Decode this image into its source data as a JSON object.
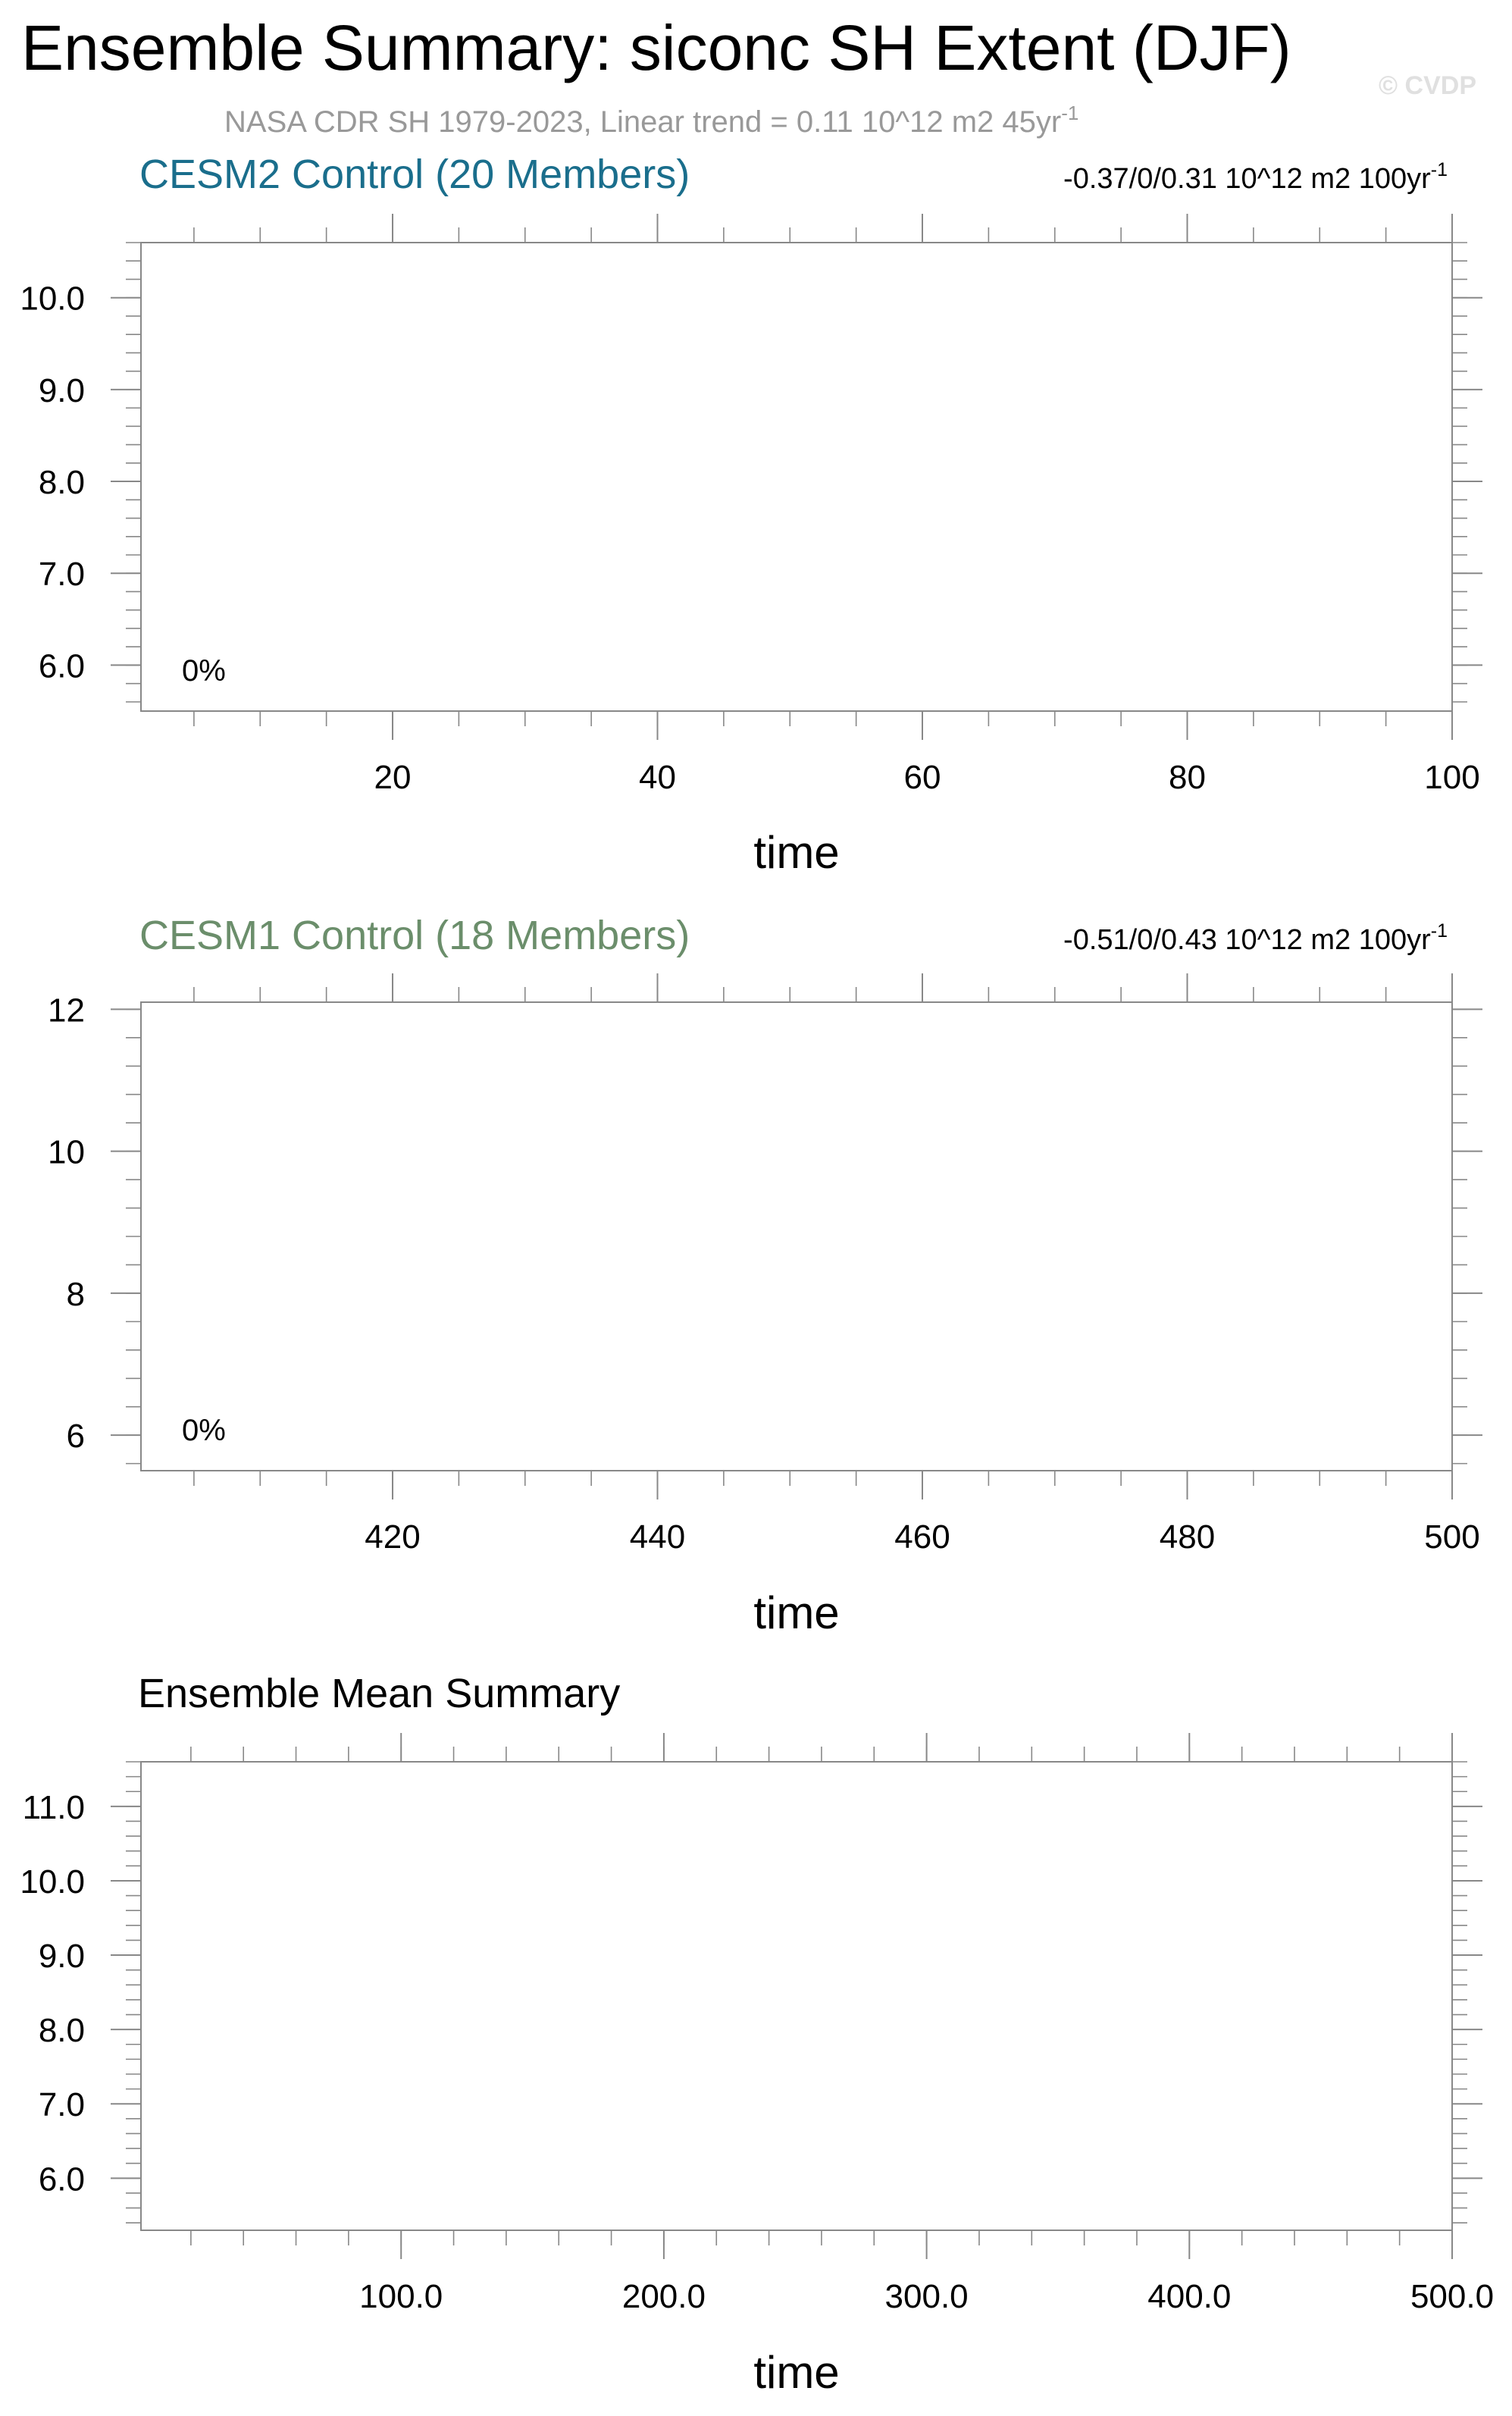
{
  "main_title": "Ensemble Summary: siconc SH Extent (DJF)",
  "watermark": "© CVDP",
  "obs_line": {
    "text": "NASA CDR SH 1979-2023, Linear trend = 0.11 10^12 m2 45yr",
    "superscript": "-1",
    "color": "#999999"
  },
  "chart_data": [
    {
      "type": "line",
      "title": "CESM2 Control (20 Members)",
      "title_color": "#1a6e8c",
      "trend_label": "-0.37/0/0.31 10^12 m2 100yr",
      "trend_superscript": "-1",
      "percent_label": "0%",
      "xlabel": "time",
      "ylabel": "",
      "xlim": [
        1,
        100
      ],
      "ylim": [
        5.5,
        10.6
      ],
      "x_ticks": [
        20,
        40,
        60,
        80,
        100
      ],
      "x_tick_labels": [
        "20",
        "40",
        "60",
        "80",
        "100"
      ],
      "x_minor_step": 5,
      "y_ticks": [
        6,
        7,
        8,
        9,
        10
      ],
      "y_tick_labels": [
        "6.0",
        "7.0",
        "8.0",
        "9.0",
        "10.0"
      ],
      "y_minor_step": 0.2,
      "series": []
    },
    {
      "type": "line",
      "title": "CESM1 Control (18 Members)",
      "title_color": "#6b8e6b",
      "trend_label": "-0.51/0/0.43 10^12 m2 100yr",
      "trend_superscript": "-1",
      "percent_label": "0%",
      "xlabel": "time",
      "ylabel": "",
      "xlim": [
        401,
        500
      ],
      "ylim": [
        5.5,
        12.1
      ],
      "x_ticks": [
        420,
        440,
        460,
        480,
        500
      ],
      "x_tick_labels": [
        "420",
        "440",
        "460",
        "480",
        "500"
      ],
      "x_minor_step": 5,
      "y_ticks": [
        6,
        8,
        10,
        12
      ],
      "y_tick_labels": [
        "6",
        "8",
        "10",
        "12"
      ],
      "y_minor_step": 0.4,
      "series": []
    },
    {
      "type": "line",
      "title": "Ensemble Mean Summary",
      "title_color": "#000000",
      "xlabel": "time",
      "ylabel": "",
      "xlim": [
        1,
        500
      ],
      "ylim": [
        5.3,
        11.6
      ],
      "x_ticks": [
        100,
        200,
        300,
        400,
        500
      ],
      "x_tick_labels": [
        "100.0",
        "200.0",
        "300.0",
        "400.0",
        "500.0"
      ],
      "x_minor_step": 20,
      "y_ticks": [
        6,
        7,
        8,
        9,
        10,
        11
      ],
      "y_tick_labels": [
        "6.0",
        "7.0",
        "8.0",
        "9.0",
        "10.0",
        "11.0"
      ],
      "y_minor_step": 0.2,
      "series": []
    }
  ]
}
